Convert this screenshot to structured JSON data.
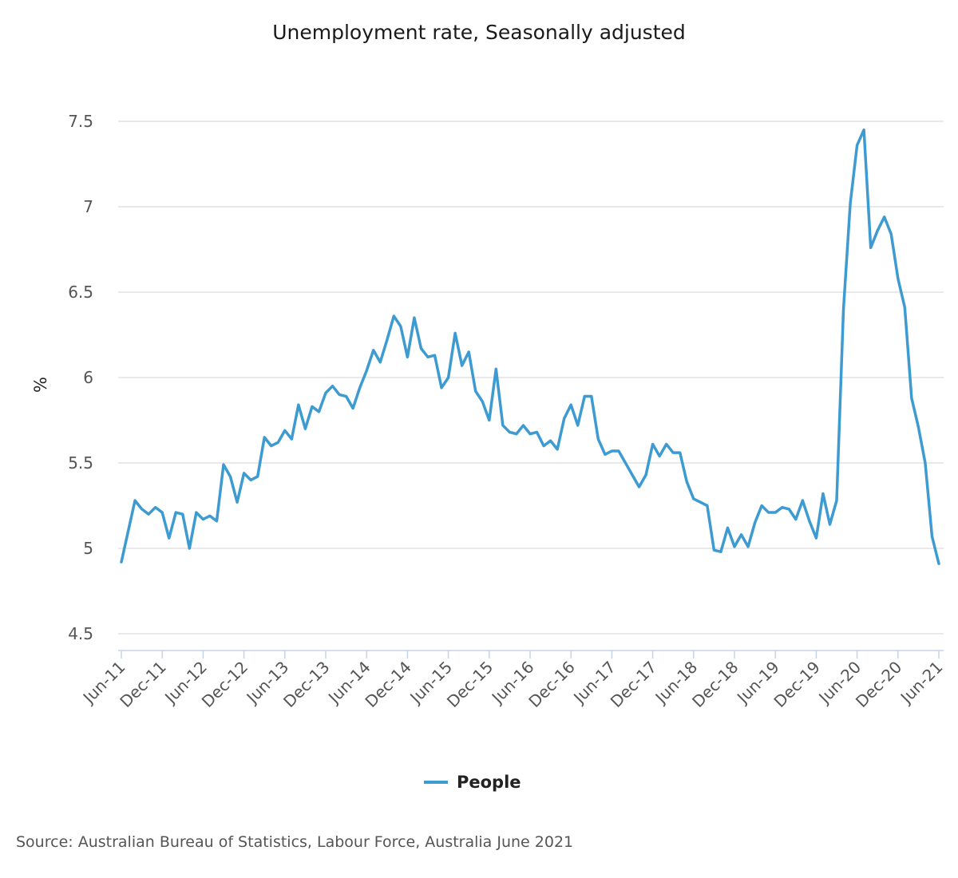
{
  "chart_data": {
    "type": "line",
    "title": "Unemployment rate, Seasonally adjusted",
    "xlabel": "",
    "ylabel": "%",
    "ylim": [
      4.5,
      7.5
    ],
    "yticks": [
      "4.5",
      "5",
      "5.5",
      "6",
      "6.5",
      "7",
      "7.5"
    ],
    "xticks": [
      "Jun-11",
      "Dec-11",
      "Jun-12",
      "Dec-12",
      "Jun-13",
      "Dec-13",
      "Jun-14",
      "Dec-14",
      "Jun-15",
      "Dec-15",
      "Jun-16",
      "Dec-16",
      "Jun-17",
      "Dec-17",
      "Jun-18",
      "Dec-18",
      "Jun-19",
      "Dec-19",
      "Jun-20",
      "Dec-20",
      "Jun-21"
    ],
    "x_range": [
      "Jun-11",
      "Jun-21"
    ],
    "grid": true,
    "legend_position": "bottom-center",
    "series": [
      {
        "name": "People",
        "color": "#3d9bd1",
        "values": [
          4.92,
          5.1,
          5.28,
          5.23,
          5.2,
          5.24,
          5.21,
          5.06,
          5.21,
          5.2,
          5.0,
          5.21,
          5.17,
          5.19,
          5.16,
          5.49,
          5.42,
          5.27,
          5.44,
          5.4,
          5.42,
          5.65,
          5.6,
          5.62,
          5.69,
          5.64,
          5.84,
          5.7,
          5.83,
          5.8,
          5.91,
          5.95,
          5.9,
          5.89,
          5.82,
          5.94,
          6.04,
          6.16,
          6.09,
          6.22,
          6.36,
          6.3,
          6.12,
          6.35,
          6.17,
          6.12,
          6.13,
          5.94,
          6.0,
          6.26,
          6.07,
          6.15,
          5.92,
          5.86,
          5.75,
          6.05,
          5.72,
          5.68,
          5.67,
          5.72,
          5.67,
          5.68,
          5.6,
          5.63,
          5.58,
          5.76,
          5.84,
          5.72,
          5.89,
          5.89,
          5.64,
          5.55,
          5.57,
          5.57,
          5.5,
          5.43,
          5.36,
          5.43,
          5.61,
          5.54,
          5.61,
          5.56,
          5.56,
          5.39,
          5.29,
          5.27,
          5.25,
          4.99,
          4.98,
          5.12,
          5.01,
          5.08,
          5.01,
          5.15,
          5.25,
          5.21,
          5.21,
          5.24,
          5.23,
          5.17,
          5.28,
          5.16,
          5.06,
          5.32,
          5.14,
          5.28,
          6.4,
          7.02,
          7.36,
          7.45,
          6.76,
          6.86,
          6.94,
          6.84,
          6.58,
          6.41,
          5.88,
          5.71,
          5.5,
          5.07,
          4.91
        ]
      }
    ],
    "legend": [
      "People"
    ]
  },
  "source": "Source: Australian Bureau of Statistics, Labour Force, Australia June 2021"
}
